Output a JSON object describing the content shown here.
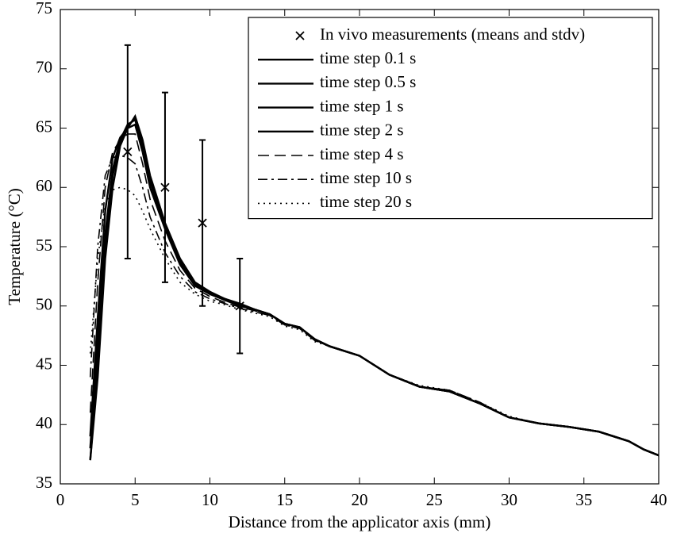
{
  "chart_data": {
    "type": "line",
    "xlabel": "Distance from the applicator axis (mm)",
    "ylabel": "Temperature (°C)",
    "xlim": [
      0,
      40
    ],
    "ylim": [
      35,
      75
    ],
    "xticks": [
      0,
      5,
      10,
      15,
      20,
      25,
      30,
      35,
      40
    ],
    "yticks": [
      35,
      40,
      45,
      50,
      55,
      60,
      65,
      70,
      75
    ],
    "legend": "upper right",
    "series": [
      {
        "name": "In vivo measurements (means and stdv)",
        "color": "#000000",
        "marker": "x",
        "x": [
          4.5,
          7,
          9.5,
          12
        ],
        "values": [
          63,
          60,
          57,
          50
        ],
        "errors": [
          9,
          8,
          7,
          4
        ]
      },
      {
        "name": "time step 0.1 s",
        "color": "#000000",
        "dash": "solid",
        "x": [
          2,
          2.5,
          3,
          3.5,
          4,
          4.5,
          5,
          5.5,
          6,
          7,
          8,
          9,
          10,
          11,
          12,
          13,
          14,
          15,
          16,
          17,
          18,
          20,
          22,
          24,
          26,
          28,
          30,
          32,
          34,
          36,
          38,
          39,
          40
        ],
        "values": [
          37,
          44,
          54,
          60,
          63.5,
          65,
          66,
          64,
          61,
          57,
          54,
          52,
          51.2,
          50.6,
          50.2,
          49.7,
          49.3,
          48.5,
          48.2,
          47.2,
          46.6,
          45.8,
          44.2,
          43.2,
          42.8,
          41.8,
          40.6,
          40.1,
          39.8,
          39.4,
          38.6,
          37.9,
          37.4
        ]
      },
      {
        "name": "time step 0.5 s",
        "color": "#000000",
        "dash": "solid",
        "x": [
          2,
          2.5,
          3,
          3.5,
          4,
          4.5,
          5,
          5.5,
          6,
          7,
          8,
          9,
          10,
          11,
          12,
          13,
          14,
          15,
          16,
          17,
          18,
          20,
          22,
          24,
          26,
          28,
          30,
          32,
          34,
          36,
          38,
          39,
          40
        ],
        "values": [
          37,
          45,
          55,
          61,
          63.8,
          65.2,
          65.8,
          63.8,
          60.8,
          56.8,
          53.8,
          51.9,
          51.1,
          50.6,
          50.1,
          49.7,
          49.3,
          48.5,
          48.2,
          47.2,
          46.6,
          45.8,
          44.2,
          43.2,
          42.8,
          41.8,
          40.6,
          40.1,
          39.8,
          39.4,
          38.6,
          37.9,
          37.4
        ]
      },
      {
        "name": "time step 1 s",
        "color": "#000000",
        "dash": "solid",
        "x": [
          2,
          2.5,
          3,
          3.5,
          4,
          4.5,
          5,
          5.5,
          6,
          7,
          8,
          9,
          10,
          11,
          12,
          13,
          14,
          15,
          16,
          17,
          18,
          20,
          22,
          24,
          26,
          28,
          30,
          32,
          34,
          36,
          38,
          39,
          40
        ],
        "values": [
          38,
          47,
          56,
          61.5,
          64,
          65.3,
          65.7,
          63.5,
          60.5,
          56.7,
          53.7,
          51.8,
          51.1,
          50.5,
          50.1,
          49.7,
          49.3,
          48.5,
          48.2,
          47.2,
          46.6,
          45.8,
          44.2,
          43.2,
          42.8,
          41.8,
          40.6,
          40.1,
          39.8,
          39.4,
          38.6,
          37.9,
          37.4
        ]
      },
      {
        "name": "time step 2 s",
        "color": "#000000",
        "dash": "solid",
        "x": [
          2,
          2.5,
          3,
          3.5,
          4,
          4.5,
          5,
          5.5,
          6,
          7,
          8,
          9,
          10,
          11,
          12,
          13,
          14,
          15,
          16,
          17,
          18,
          20,
          22,
          24,
          26,
          28,
          30,
          32,
          34,
          36,
          38,
          39,
          40
        ],
        "values": [
          39,
          49,
          58,
          62.5,
          64.2,
          65,
          65.3,
          63,
          60,
          56.5,
          53.5,
          51.7,
          51,
          50.5,
          50,
          49.7,
          49.3,
          48.5,
          48.2,
          47.2,
          46.6,
          45.8,
          44.2,
          43.2,
          42.8,
          41.8,
          40.6,
          40.1,
          39.8,
          39.4,
          38.6,
          37.9,
          37.4
        ]
      },
      {
        "name": "time step 4 s",
        "color": "#000000",
        "dash": "dashed",
        "x": [
          2,
          2.5,
          3,
          3.5,
          4,
          4.5,
          5,
          5.5,
          6,
          7,
          8,
          9,
          10,
          11,
          12,
          13,
          14,
          15,
          16,
          17,
          18,
          20,
          22,
          24,
          26,
          28,
          30,
          32,
          34,
          36,
          38,
          39,
          40
        ],
        "values": [
          41,
          52,
          60,
          63,
          64,
          64.5,
          64.5,
          62,
          59,
          55.5,
          53,
          51.5,
          50.8,
          50.3,
          49.9,
          49.6,
          49.2,
          48.4,
          48.1,
          47.1,
          46.6,
          45.8,
          44.2,
          43.2,
          42.9,
          41.9,
          40.6,
          40.1,
          39.8,
          39.4,
          38.6,
          37.9,
          37.4
        ]
      },
      {
        "name": "time step 10 s",
        "color": "#000000",
        "dash": "dashdot",
        "x": [
          2,
          2.5,
          3,
          3.5,
          4,
          4.5,
          5,
          5.5,
          6,
          7,
          8,
          9,
          10,
          11,
          12,
          13,
          14,
          15,
          16,
          17,
          18,
          20,
          22,
          24,
          26,
          28,
          30,
          32,
          34,
          36,
          38,
          39,
          40
        ],
        "values": [
          44,
          55,
          61,
          62.5,
          62.7,
          62.5,
          62,
          60,
          57.5,
          54.5,
          52.5,
          51.2,
          50.6,
          50.2,
          49.8,
          49.5,
          49.2,
          48.4,
          48.1,
          47.1,
          46.6,
          45.8,
          44.2,
          43.2,
          42.9,
          41.9,
          40.6,
          40.1,
          39.8,
          39.4,
          38.6,
          37.9,
          37.4
        ]
      },
      {
        "name": "time step 20 s",
        "color": "#000000",
        "dash": "dotted",
        "x": [
          2,
          2.5,
          3,
          3.5,
          4,
          4.5,
          5,
          5.5,
          6,
          7,
          8,
          9,
          10,
          11,
          12,
          13,
          14,
          15,
          16,
          17,
          18,
          20,
          22,
          24,
          26,
          28,
          30,
          32,
          34,
          36,
          38,
          39,
          40
        ],
        "values": [
          46,
          54,
          58.5,
          59.8,
          60,
          59.8,
          59.3,
          58,
          56.5,
          54,
          52,
          51,
          50.4,
          50.1,
          49.7,
          49.4,
          49.1,
          48.3,
          48,
          47,
          46.6,
          45.8,
          44.2,
          43.3,
          42.9,
          41.9,
          40.7,
          40.1,
          39.8,
          39.4,
          38.6,
          37.9,
          37.4
        ]
      }
    ]
  }
}
